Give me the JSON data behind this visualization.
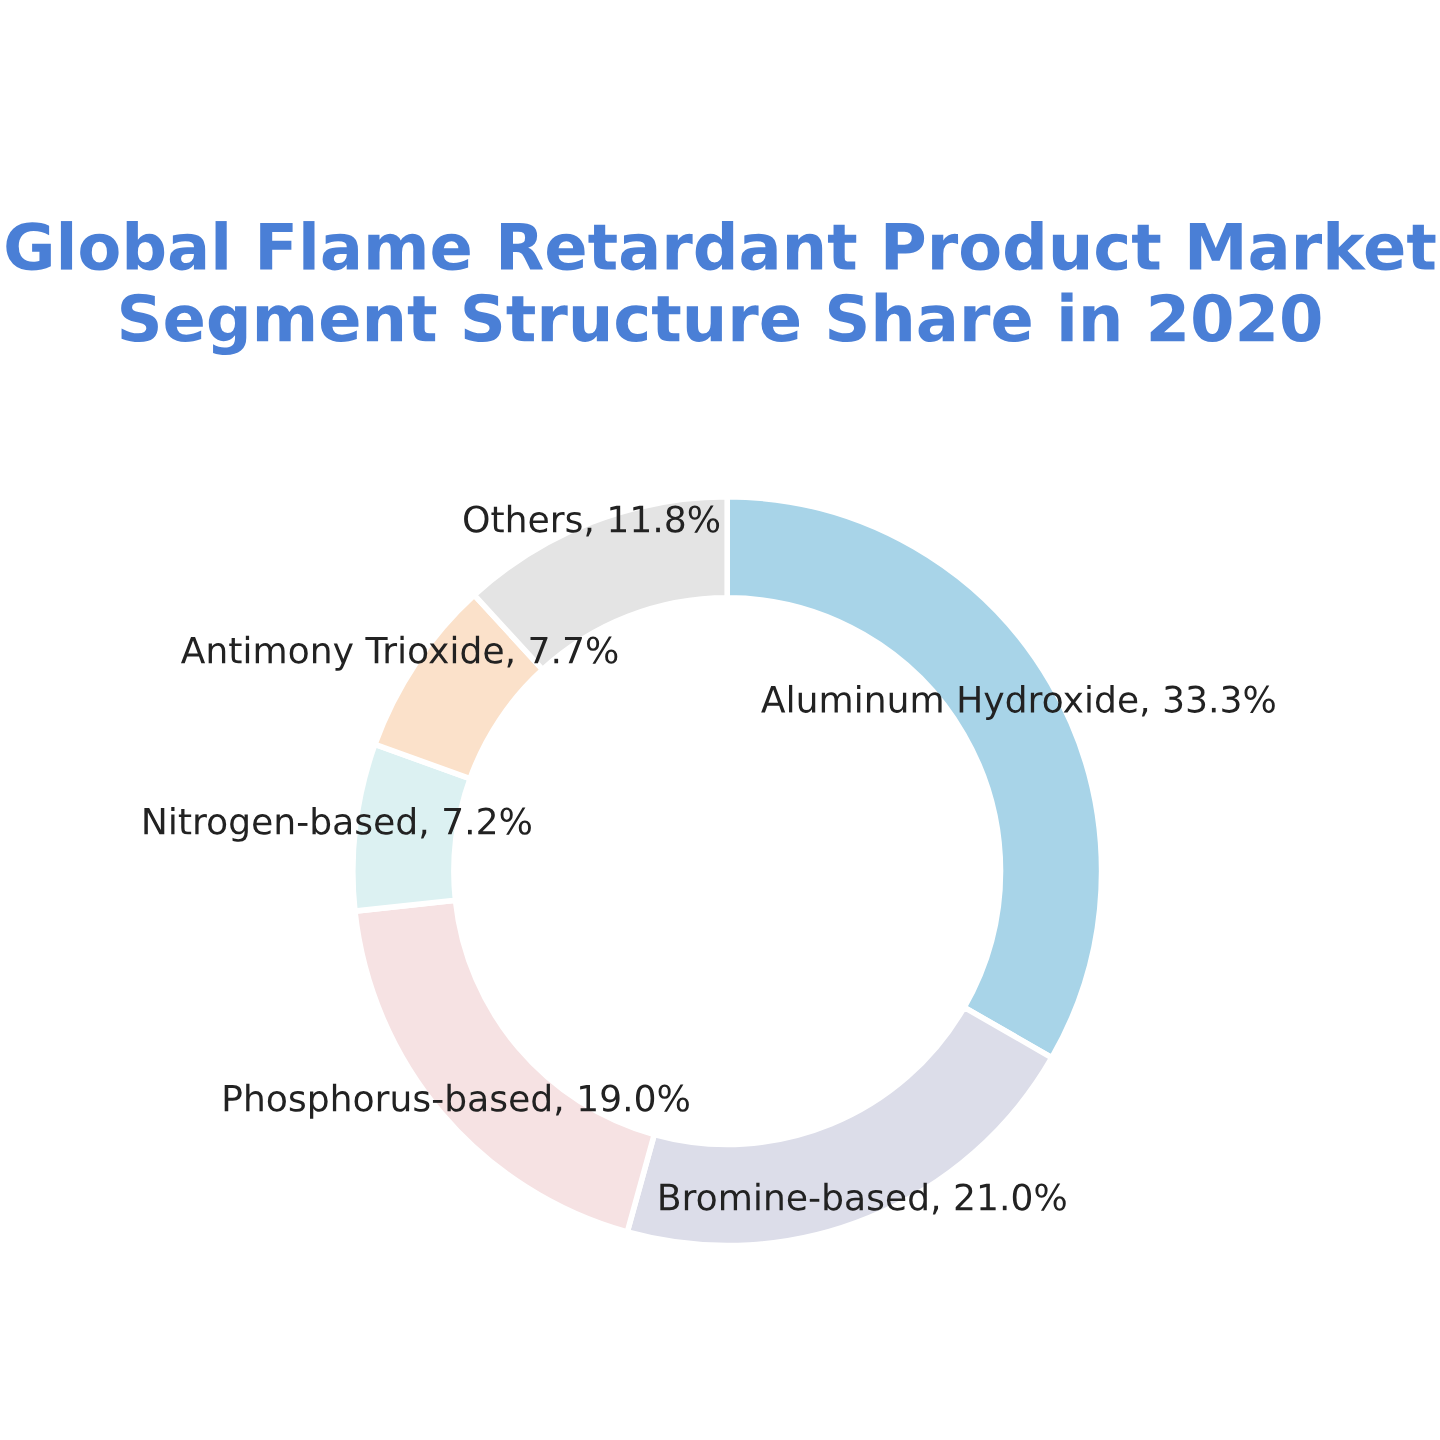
{
  "chart_data": {
    "type": "donut",
    "title": "Global Flame Retardant Product Market\nSegment Structure Share in 2020",
    "categories": [
      "Aluminum Hydroxide, 33.3%",
      "Bromine-based, 21.0%",
      "Phosphorus-based, 19.0%",
      "Nitrogen-based, 7.2%",
      "Antimony Trioxide, 7.7%",
      "Others, 11.8%"
    ],
    "values": [
      33.3,
      21.0,
      19.0,
      7.2,
      7.7,
      11.8
    ],
    "colors": [
      "#a8d4e8",
      "#dcdde9",
      "#f6e2e3",
      "#dcf1f2",
      "#fbe1ca",
      "#e4e4e4"
    ],
    "legend": false
  }
}
